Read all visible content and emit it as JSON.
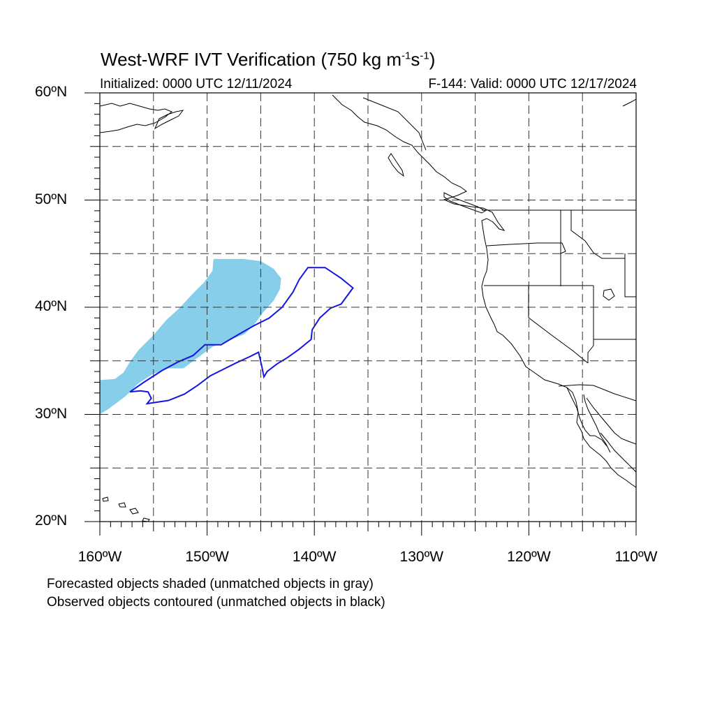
{
  "header": {
    "title_prefix": "West-WRF IVT Verification (750 kg m",
    "title_exp1": "-1",
    "title_mid": "s",
    "title_exp2": "-1",
    "title_suffix": ")",
    "initialized": "Initialized: 0000 UTC 12/11/2024",
    "valid": "F-144: Valid: 0000 UTC 12/17/2024"
  },
  "map": {
    "lon_range": [
      -160,
      -110
    ],
    "lat_range": [
      20,
      60
    ],
    "gridlines": "dashed",
    "lat_labels": [
      {
        "lat": 60,
        "text": "60ºN"
      },
      {
        "lat": 50,
        "text": "50ºN"
      },
      {
        "lat": 40,
        "text": "40ºN"
      },
      {
        "lat": 30,
        "text": "30ºN"
      },
      {
        "lat": 20,
        "text": "20ºN"
      }
    ],
    "lon_labels": [
      {
        "lon": -160,
        "text": "160ºW"
      },
      {
        "lon": -150,
        "text": "150ºW"
      },
      {
        "lon": -140,
        "text": "140ºW"
      },
      {
        "lon": -130,
        "text": "130ºW"
      },
      {
        "lon": -120,
        "text": "120ºW"
      },
      {
        "lon": -110,
        "text": "110ºW"
      }
    ],
    "colors": {
      "forecast_fill": "#87ceeb",
      "observed_contour": "#1414e6",
      "coastline": "#000000",
      "grid": "#333333"
    },
    "forecast_object": [
      [
        -160,
        30.0
      ],
      [
        -159.2,
        30.5
      ],
      [
        -157.6,
        31.7
      ],
      [
        -156.4,
        32.9
      ],
      [
        -155.0,
        33.8
      ],
      [
        -153.6,
        34.3
      ],
      [
        -152.2,
        34.3
      ],
      [
        -151.0,
        35.2
      ],
      [
        -149.5,
        36.3
      ],
      [
        -148.2,
        36.8
      ],
      [
        -146.5,
        37.5
      ],
      [
        -145.6,
        38.4
      ],
      [
        -144.8,
        39.5
      ],
      [
        -143.8,
        40.6
      ],
      [
        -143.2,
        41.7
      ],
      [
        -143.1,
        42.7
      ],
      [
        -143.8,
        43.6
      ],
      [
        -145.0,
        44.3
      ],
      [
        -146.6,
        44.5
      ],
      [
        -148.1,
        44.5
      ],
      [
        -149.4,
        44.5
      ],
      [
        -149.5,
        43.4
      ],
      [
        -150.3,
        42.3
      ],
      [
        -151.3,
        41.3
      ],
      [
        -152.6,
        39.9
      ],
      [
        -153.8,
        38.8
      ],
      [
        -155.0,
        37.4
      ],
      [
        -156.4,
        36.0
      ],
      [
        -157.2,
        34.9
      ],
      [
        -157.8,
        33.9
      ],
      [
        -158.6,
        33.3
      ],
      [
        -160,
        33.2
      ]
    ],
    "observed_object": [
      [
        -157.2,
        32.1
      ],
      [
        -155.9,
        33.0
      ],
      [
        -154.2,
        34.1
      ],
      [
        -152.7,
        34.9
      ],
      [
        -151.3,
        35.5
      ],
      [
        -150.2,
        36.5
      ],
      [
        -148.7,
        36.5
      ],
      [
        -147.0,
        37.5
      ],
      [
        -145.6,
        38.3
      ],
      [
        -144.2,
        39.0
      ],
      [
        -143.0,
        40.0
      ],
      [
        -142.0,
        41.4
      ],
      [
        -141.4,
        42.6
      ],
      [
        -140.6,
        43.7
      ],
      [
        -139.0,
        43.7
      ],
      [
        -137.5,
        42.7
      ],
      [
        -136.4,
        41.8
      ],
      [
        -137.5,
        40.3
      ],
      [
        -138.5,
        39.9
      ],
      [
        -139.5,
        39.0
      ],
      [
        -140.2,
        37.9
      ],
      [
        -140.3,
        37.0
      ],
      [
        -141.4,
        36.1
      ],
      [
        -142.5,
        35.3
      ],
      [
        -143.5,
        34.7
      ],
      [
        -144.4,
        34.0
      ],
      [
        -144.7,
        33.5
      ],
      [
        -144.9,
        34.5
      ],
      [
        -145.2,
        35.8
      ],
      [
        -146.0,
        35.4
      ],
      [
        -147.3,
        34.8
      ],
      [
        -148.5,
        34.2
      ],
      [
        -149.7,
        33.6
      ],
      [
        -150.9,
        32.7
      ],
      [
        -152.1,
        31.9
      ],
      [
        -153.6,
        31.3
      ],
      [
        -155.6,
        31.0
      ],
      [
        -155.2,
        31.5
      ],
      [
        -155.5,
        32.1
      ],
      [
        -156.2,
        32.2
      ]
    ]
  },
  "footer": {
    "line1": "Forecasted objects shaded (unmatched objects in gray)",
    "line2": "Observed objects contoured (unmatched objects in black)"
  }
}
